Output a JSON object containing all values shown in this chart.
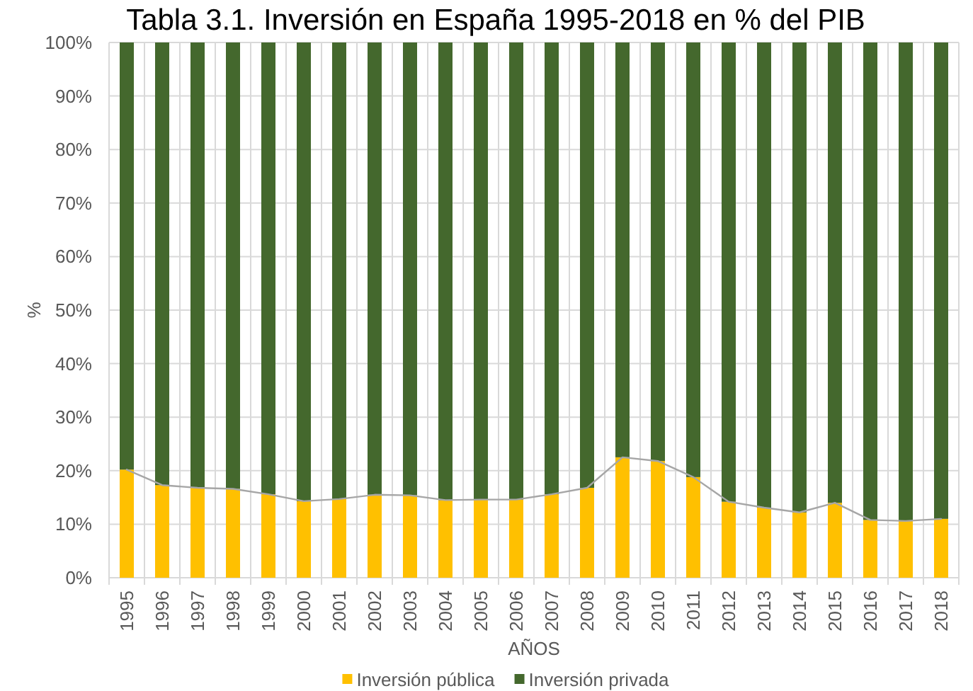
{
  "chart_data": {
    "type": "bar",
    "title": "Tabla 3.1. Inversión en España 1995-2018 en % del PIB",
    "xlabel": "AÑOS",
    "ylabel": "%",
    "categories": [
      "1995",
      "1996",
      "1997",
      "1998",
      "1999",
      "2000",
      "2001",
      "2002",
      "2003",
      "2004",
      "2005",
      "2006",
      "2007",
      "2008",
      "2009",
      "2010",
      "2011",
      "2012",
      "2013",
      "2014",
      "2015",
      "2016",
      "2017",
      "2018"
    ],
    "series": [
      {
        "name": "Inversión pública",
        "color": "#ffc000",
        "values": [
          20.2,
          17.3,
          16.8,
          16.6,
          15.6,
          14.3,
          14.7,
          15.5,
          15.4,
          14.5,
          14.6,
          14.6,
          15.6,
          16.8,
          22.5,
          21.8,
          18.8,
          14.2,
          13.1,
          12.2,
          14.0,
          10.8,
          10.6,
          11.0
        ]
      },
      {
        "name": "Inversión privada",
        "color": "#44682d",
        "values": [
          79.8,
          82.7,
          83.2,
          83.4,
          84.4,
          85.7,
          85.3,
          84.5,
          84.6,
          85.5,
          85.4,
          85.4,
          84.4,
          83.2,
          77.5,
          78.2,
          81.2,
          85.8,
          86.9,
          87.8,
          86.0,
          89.2,
          89.4,
          89.0
        ]
      },
      {
        "type": "line",
        "color": "#a6a6a6",
        "values": [
          20.2,
          17.3,
          16.8,
          16.6,
          15.6,
          14.3,
          14.7,
          15.5,
          15.4,
          14.5,
          14.6,
          14.6,
          15.6,
          16.8,
          22.5,
          21.8,
          18.8,
          14.2,
          13.1,
          12.2,
          14.0,
          10.8,
          10.6,
          11.0
        ]
      }
    ],
    "stacked": true,
    "ylim": [
      0,
      100
    ],
    "yticks": [
      {
        "value": 0,
        "label": "0%"
      },
      {
        "value": 10,
        "label": "10%"
      },
      {
        "value": 20,
        "label": "20%"
      },
      {
        "value": 30,
        "label": "30%"
      },
      {
        "value": 40,
        "label": "40%"
      },
      {
        "value": 50,
        "label": "50%"
      },
      {
        "value": 60,
        "label": "60%"
      },
      {
        "value": 70,
        "label": "70%"
      },
      {
        "value": 80,
        "label": "80%"
      },
      {
        "value": 90,
        "label": "90%"
      },
      {
        "value": 100,
        "label": "100%"
      }
    ],
    "grid": true,
    "legend": "bottom"
  }
}
